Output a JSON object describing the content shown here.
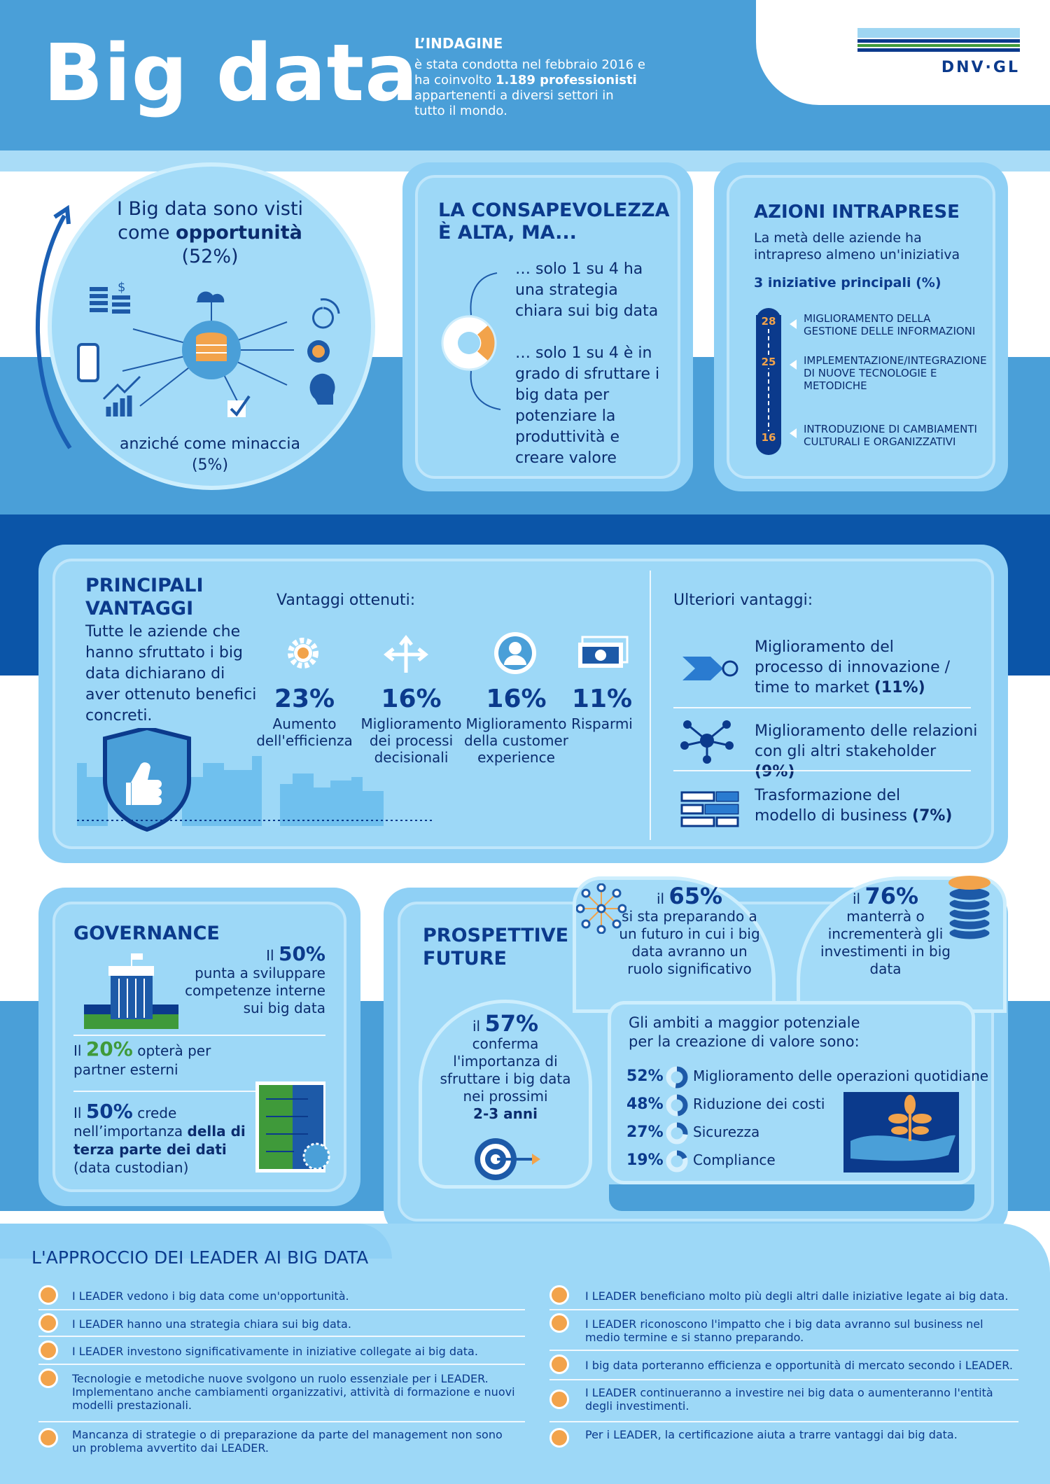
{
  "header": {
    "title": "Big data",
    "survey_heading": "L’INDAGINE",
    "survey_text_1": "è stata condotta nel febbraio 2016 e ha coinvolto ",
    "survey_bold": "1.189 professionisti",
    "survey_text_2": " appartenenti a diversi settori in tutto il mondo.",
    "logo": "DNV·GL"
  },
  "opportunity": {
    "line1": "I Big data sono visti",
    "line2_a": "come ",
    "line2_b": "opportunità",
    "pct": "(52%)",
    "threat": "anziché come minaccia",
    "threat_pct": "(5%)"
  },
  "awareness": {
    "title_1": "LA CONSAPEVOLEZZA",
    "title_2": "È ALTA, MA...",
    "p1": "… solo 1 su 4 ha una strategia chiara sui big data",
    "p2": "… solo 1 su 4 è in grado di sfruttare i big data per potenziare la produttività e creare valore"
  },
  "actions": {
    "title": "AZIONI INTRAPRESE",
    "text": "La metà delle aziende ha intrapreso almeno un'iniziativa",
    "subtitle": "3 iniziative principali (%)",
    "items": [
      {
        "value": "28",
        "label": "MIGLIORAMENTO DELLA GESTIONE DELLE INFORMAZIONI"
      },
      {
        "value": "25",
        "label": "IMPLEMENTAZIONE/INTEGRAZIONE DI NUOVE TECNOLOGIE E METODICHE"
      },
      {
        "value": "16",
        "label": "INTRODUZIONE DI CAMBIAMENTI CULTURALI E ORGANIZZATIVI"
      }
    ]
  },
  "advantages": {
    "title_1": "PRINCIPALI",
    "title_2": "VANTAGGI",
    "text": "Tutte le aziende che hanno sfruttato i big data dichiarano di aver ottenuto benefici concreti.",
    "obtained_heading": "Vantaggi ottenuti:",
    "obtained": [
      {
        "pct": "23%",
        "label": "Aumento dell'efficienza",
        "icon": "gear-icon"
      },
      {
        "pct": "16%",
        "label": "Miglioramento dei processi decisionali",
        "icon": "arrows-icon"
      },
      {
        "pct": "16%",
        "label": "Miglioramento della customer experience",
        "icon": "user-icon"
      },
      {
        "pct": "11%",
        "label": "Risparmi",
        "icon": "money-icon"
      }
    ],
    "further_heading": "Ulteriori vantaggi:",
    "further": [
      {
        "text": "Miglioramento del processo di innovazione / time to market",
        "pct": "(11%)",
        "icon": "arrow-icon"
      },
      {
        "text": "Miglioramento delle relazioni con gli altri stakeholder",
        "pct": "(9%)",
        "icon": "network-icon"
      },
      {
        "text": "Trasformazione del modello di business",
        "pct": "(7%)",
        "icon": "blocks-icon"
      }
    ]
  },
  "governance": {
    "title": "GOVERNANCE",
    "s1_a": "Il ",
    "s1_b": "50%",
    "s1_c": "punta a sviluppare competenze interne sui big data",
    "s2_a": "Il ",
    "s2_b": "20%",
    "s2_c": " opterà per partner esterni",
    "s3_a": "Il ",
    "s3_b": "50%",
    "s3_c": " crede nell’importanza ",
    "s3_d": "della di terza parte dei dati",
    "s3_e": " (data custodian)"
  },
  "future": {
    "title_1": "PROSPETTIVE",
    "title_2": "FUTURE",
    "f65_a": "il ",
    "f65_b": "65%",
    "f65_c": "si sta preparando a un futuro in cui i big data avranno un ruolo significativo",
    "f76_a": "il ",
    "f76_b": "76%",
    "f76_c": "manterrà o incrementerà gli investimenti in big data",
    "f57_a": "il ",
    "f57_b": "57%",
    "f57_c": "conferma l'importanza di sfruttare i big data nei prossimi",
    "f57_d": "2-3 anni",
    "areas_heading": "Gli ambiti a maggior potenziale per la creazione di valore sono:",
    "areas": [
      {
        "pct": "52%",
        "label": "Miglioramento delle operazioni quotidiane",
        "value": 52
      },
      {
        "pct": "48%",
        "label": "Riduzione dei costi",
        "value": 48
      },
      {
        "pct": "27%",
        "label": "Sicurezza",
        "value": 27
      },
      {
        "pct": "19%",
        "label": "Compliance",
        "value": 19
      }
    ]
  },
  "leaders": {
    "title": "L'APPROCCIO DEI LEADER AI BIG DATA",
    "left": [
      "I LEADER vedono i big data come un'opportunità.",
      "I LEADER hanno una strategia chiara sui big data.",
      "I LEADER investono significativamente in iniziative collegate ai big data.",
      "Tecnologie e metodiche nuove svolgono un ruolo essenziale per i LEADER. Implementano anche cambiamenti organizzativi, attività di formazione e nuovi modelli prestazionali.",
      "Mancanza di strategie  o di preparazione da parte del management non sono un problema avvertito dai LEADER."
    ],
    "right": [
      "I LEADER beneficiano molto più degli altri dalle iniziative legate ai big data.",
      "I LEADER riconoscono l'impatto che i big data avranno sul business nel medio termine e si stanno preparando.",
      "I big data porteranno efficienza e opportunità di mercato secondo i LEADER.",
      "I LEADER continueranno a investire nei big data o aumenteranno l'entità degli investimenti.",
      "Per i LEADER, la certificazione aiuta a trarre vantaggi dai big data."
    ]
  }
}
